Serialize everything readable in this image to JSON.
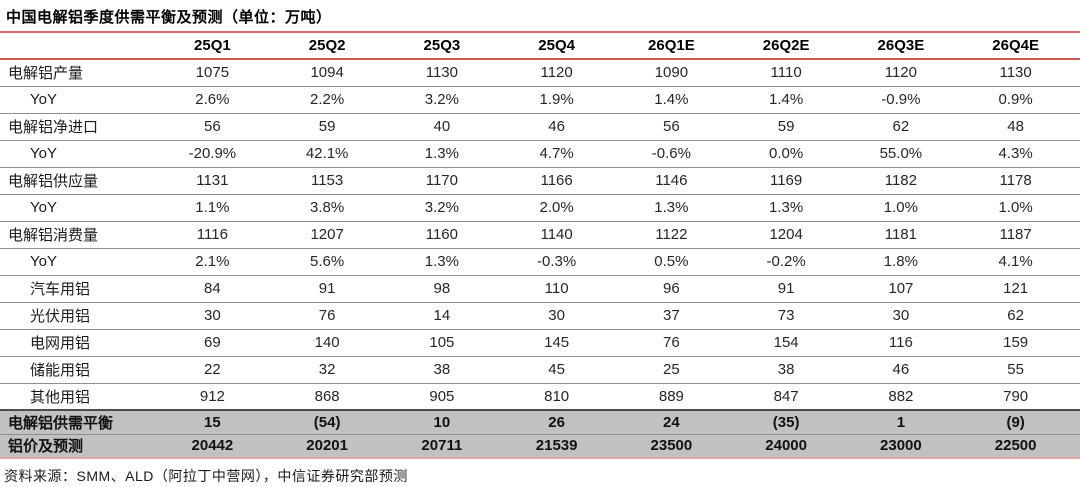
{
  "colors": {
    "top_rule_red": "#d4706d",
    "header_rule_red": "#cc5a56",
    "bottom_rule_pink": "#e2a7a5",
    "row_separator_gray": "#8f8f8f",
    "highlight_row_gray": "#c1c1c1",
    "text_black": "#1a1a1a"
  },
  "chart_data": {
    "type": "table",
    "title": "中国电解铝季度供需平衡及预测（单位：万吨）",
    "source": "资料来源：SMM、ALD（阿拉丁中营网），中信证券研究部预测",
    "columns": [
      "25Q1",
      "25Q2",
      "25Q3",
      "25Q4",
      "26Q1E",
      "26Q2E",
      "26Q3E",
      "26Q4E"
    ],
    "rows": [
      {
        "label": "电解铝产量",
        "values": [
          "1075",
          "1094",
          "1130",
          "1120",
          "1090",
          "1110",
          "1120",
          "1130"
        ],
        "indent": false,
        "highlight": false
      },
      {
        "label": "YoY",
        "values": [
          "2.6%",
          "2.2%",
          "3.2%",
          "1.9%",
          "1.4%",
          "1.4%",
          "-0.9%",
          "0.9%"
        ],
        "indent": true,
        "highlight": false
      },
      {
        "label": "电解铝净进口",
        "values": [
          "56",
          "59",
          "40",
          "46",
          "56",
          "59",
          "62",
          "48"
        ],
        "indent": false,
        "highlight": false
      },
      {
        "label": "YoY",
        "values": [
          "-20.9%",
          "42.1%",
          "1.3%",
          "4.7%",
          "-0.6%",
          "0.0%",
          "55.0%",
          "4.3%"
        ],
        "indent": true,
        "highlight": false
      },
      {
        "label": "电解铝供应量",
        "values": [
          "1131",
          "1153",
          "1170",
          "1166",
          "1146",
          "1169",
          "1182",
          "1178"
        ],
        "indent": false,
        "highlight": false
      },
      {
        "label": "YoY",
        "values": [
          "1.1%",
          "3.8%",
          "3.2%",
          "2.0%",
          "1.3%",
          "1.3%",
          "1.0%",
          "1.0%"
        ],
        "indent": true,
        "highlight": false
      },
      {
        "label": "电解铝消费量",
        "values": [
          "1116",
          "1207",
          "1160",
          "1140",
          "1122",
          "1204",
          "1181",
          "1187"
        ],
        "indent": false,
        "highlight": false
      },
      {
        "label": "YoY",
        "values": [
          "2.1%",
          "5.6%",
          "1.3%",
          "-0.3%",
          "0.5%",
          "-0.2%",
          "1.8%",
          "4.1%"
        ],
        "indent": true,
        "highlight": false
      },
      {
        "label": "汽车用铝",
        "values": [
          "84",
          "91",
          "98",
          "110",
          "96",
          "91",
          "107",
          "121"
        ],
        "indent": true,
        "highlight": false
      },
      {
        "label": "光伏用铝",
        "values": [
          "30",
          "76",
          "14",
          "30",
          "37",
          "73",
          "30",
          "62"
        ],
        "indent": true,
        "highlight": false
      },
      {
        "label": "电网用铝",
        "values": [
          "69",
          "140",
          "105",
          "145",
          "76",
          "154",
          "116",
          "159"
        ],
        "indent": true,
        "highlight": false
      },
      {
        "label": "储能用铝",
        "values": [
          "22",
          "32",
          "38",
          "45",
          "25",
          "38",
          "46",
          "55"
        ],
        "indent": true,
        "highlight": false
      },
      {
        "label": "其他用铝",
        "values": [
          "912",
          "868",
          "905",
          "810",
          "889",
          "847",
          "882",
          "790"
        ],
        "indent": true,
        "highlight": false
      },
      {
        "label": "电解铝供需平衡",
        "values": [
          "15",
          "(54)",
          "10",
          "26",
          "24",
          "(35)",
          "1",
          "(9)"
        ],
        "indent": false,
        "highlight": true
      },
      {
        "label": "铝价及预测",
        "values": [
          "20442",
          "20201",
          "20711",
          "21539",
          "23500",
          "24000",
          "23000",
          "22500"
        ],
        "indent": false,
        "highlight": true
      }
    ]
  }
}
